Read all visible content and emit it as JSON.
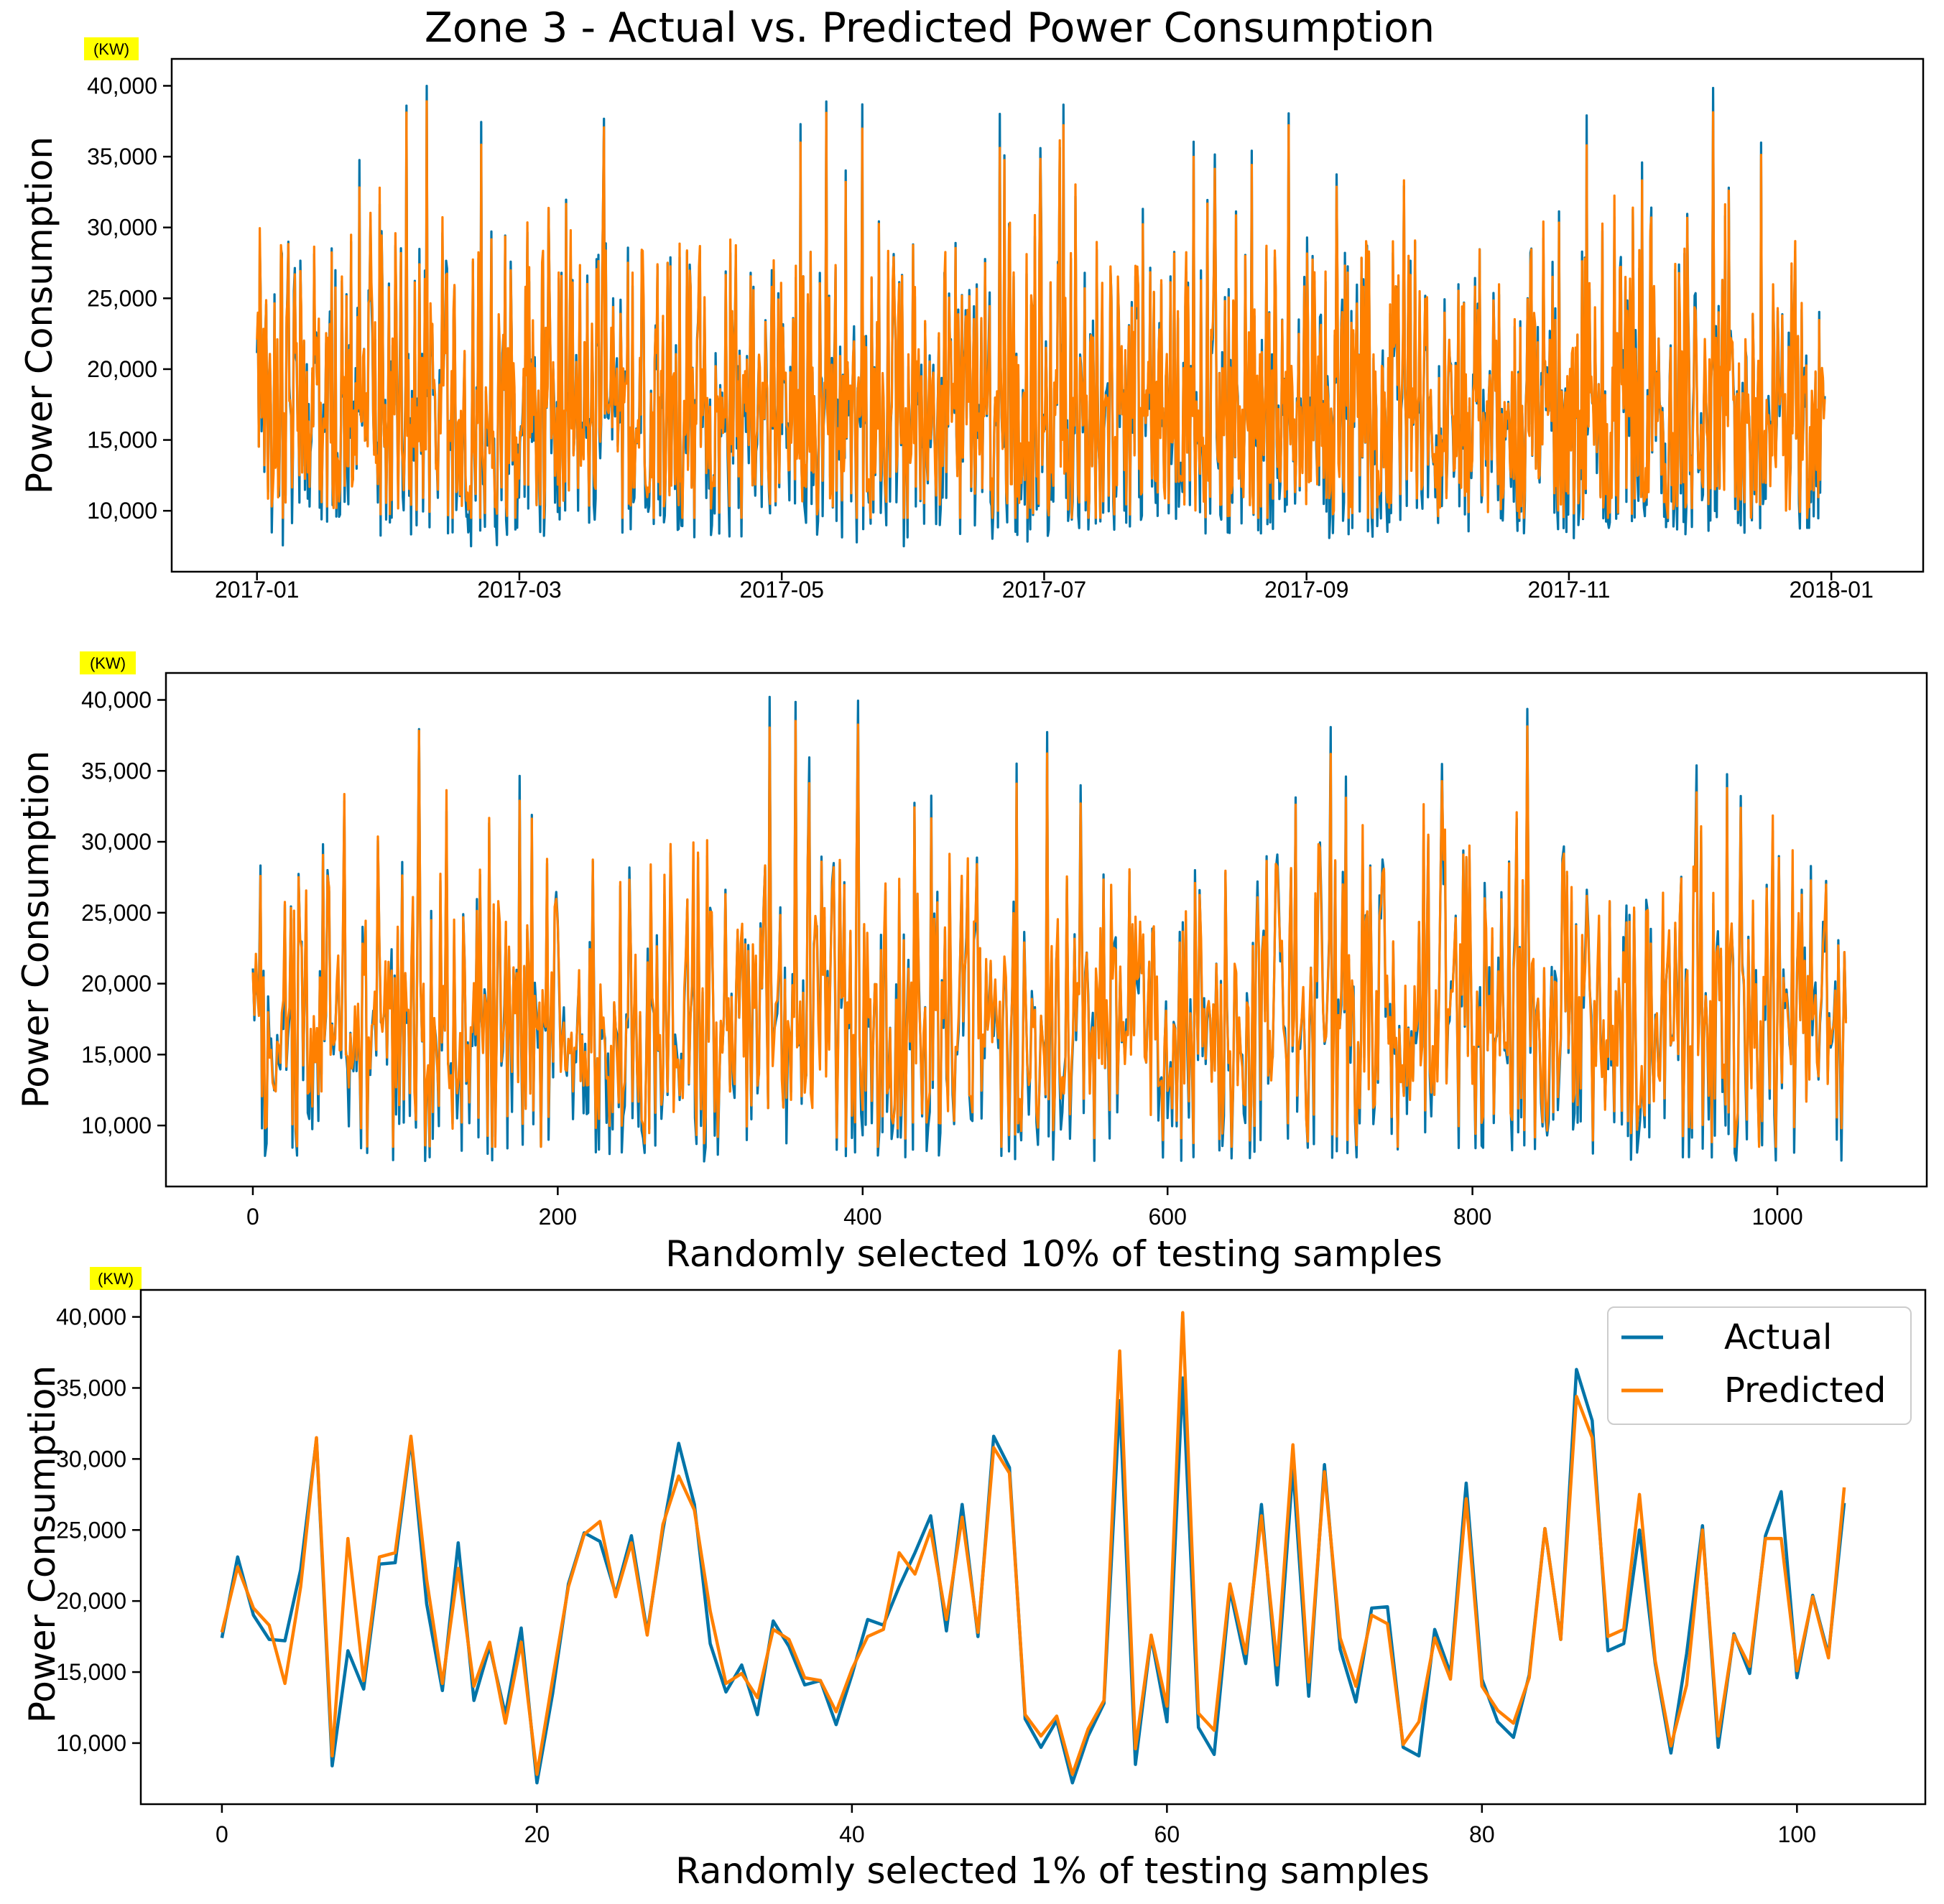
{
  "figure": {
    "title": "Zone 3 - Actual vs. Predicted Power Consumption",
    "colors": {
      "actual": "#0274a8",
      "predicted": "#ff8000",
      "unit_highlight": "#ffff00"
    }
  },
  "chart_data": [
    {
      "type": "line",
      "subplot": "top",
      "title": "Zone 3 - Actual vs. Predicted Power Consumption",
      "ylabel": "Power Consumption",
      "unit_label": "(KW)",
      "xlabel": "",
      "x_tick_labels": [
        "2017-01",
        "2017-03",
        "2017-05",
        "2017-07",
        "2017-09",
        "2017-11",
        "2018-01"
      ],
      "x_tick_months": [
        0,
        2,
        4,
        6,
        8,
        10,
        12
      ],
      "xlim_months": [
        -0.65,
        12.7
      ],
      "data_range_months": [
        0,
        11.95
      ],
      "y_ticks": [
        10000,
        15000,
        20000,
        25000,
        30000,
        35000,
        40000
      ],
      "y_tick_labels": [
        "10,000",
        "15,000",
        "20,000",
        "25,000",
        "30,000",
        "35,000",
        "40,000"
      ],
      "ylim": [
        5700,
        41900
      ],
      "series": [
        {
          "name": "Actual",
          "typical_min": 8000,
          "typical_max": 40000,
          "typical_center": 16500
        },
        {
          "name": "Predicted",
          "typical_min": 9500,
          "typical_max": 40300,
          "typical_center": 16500
        }
      ]
    },
    {
      "type": "line",
      "subplot": "middle",
      "ylabel": "Power Consumption",
      "unit_label": "(KW)",
      "xlabel": "Randomly selected 10% of testing samples",
      "x_ticks": [
        0,
        200,
        400,
        600,
        800,
        1000
      ],
      "x_tick_labels": [
        "0",
        "200",
        "400",
        "600",
        "800",
        "1000"
      ],
      "xlim": [
        -57,
        1098
      ],
      "n_samples": 1046,
      "y_ticks": [
        10000,
        15000,
        20000,
        25000,
        30000,
        35000,
        40000
      ],
      "y_tick_labels": [
        "10,000",
        "15,000",
        "20,000",
        "25,000",
        "30,000",
        "35,000",
        "40,000"
      ],
      "ylim": [
        5700,
        41900
      ],
      "series": [
        {
          "name": "Actual",
          "typical_min": 7500,
          "typical_max": 40300,
          "typical_center": 16500
        },
        {
          "name": "Predicted",
          "typical_min": 8500,
          "typical_max": 38800,
          "typical_center": 16500
        }
      ]
    },
    {
      "type": "line",
      "subplot": "bottom",
      "ylabel": "Power Consumption",
      "unit_label": "(KW)",
      "xlabel": "Randomly selected 1% of testing samples",
      "x_ticks": [
        0,
        20,
        40,
        60,
        80,
        100
      ],
      "x_tick_labels": [
        "0",
        "20",
        "40",
        "60",
        "80",
        "100"
      ],
      "xlim": [
        -5.15,
        108.15
      ],
      "y_ticks": [
        10000,
        15000,
        20000,
        25000,
        30000,
        35000,
        40000
      ],
      "y_tick_labels": [
        "10,000",
        "15,000",
        "20,000",
        "25,000",
        "30,000",
        "35,000",
        "40,000"
      ],
      "ylim": [
        5700,
        41900
      ],
      "legend": {
        "position": "top-right",
        "entries": [
          "Actual",
          "Predicted"
        ]
      },
      "series": [
        {
          "name": "Actual",
          "values": [
            17400,
            23100,
            19000,
            17300,
            17200,
            22200,
            31400,
            8400,
            16500,
            13800,
            22600,
            22700,
            31400,
            19800,
            13700,
            24100,
            13000,
            16800,
            12000,
            18100,
            7200,
            13500,
            21200,
            24800,
            24200,
            20500,
            24600,
            17800,
            25000,
            31100,
            26800,
            17000,
            13600,
            15500,
            12000,
            18600,
            16800,
            14100,
            14400,
            11300,
            14800,
            18700,
            18300,
            21000,
            23400,
            26000,
            17900,
            26800,
            17500,
            31600,
            29400,
            11700,
            9700,
            11600,
            7200,
            10500,
            12800,
            34100,
            8500,
            17500,
            11500,
            35700,
            11100,
            9200,
            20800,
            15600,
            26800,
            14100,
            29400,
            13300,
            29600,
            16600,
            12900,
            19500,
            19600,
            9700,
            9100,
            18000,
            14900,
            28300,
            14500,
            11500,
            10400,
            14800,
            25100,
            17300,
            36300,
            32700,
            16500,
            17000,
            25000,
            15600,
            9300,
            16300,
            25300,
            9700,
            17700,
            14900,
            24600,
            27700,
            14600,
            20400,
            16200,
            26900
          ]
        },
        {
          "name": "Predicted",
          "values": [
            17800,
            22400,
            19500,
            18300,
            14200,
            21000,
            31500,
            9100,
            24400,
            14400,
            23100,
            23400,
            31600,
            21500,
            14200,
            22300,
            14000,
            17100,
            11400,
            17100,
            7800,
            14500,
            21000,
            24700,
            25600,
            20300,
            24100,
            17600,
            25400,
            28800,
            26400,
            19300,
            14200,
            14900,
            13200,
            18000,
            17300,
            14600,
            14400,
            12200,
            15200,
            17500,
            18000,
            23400,
            21900,
            25000,
            18700,
            25900,
            17800,
            30800,
            29000,
            12000,
            10500,
            11900,
            7800,
            11000,
            13000,
            37600,
            9600,
            17600,
            12600,
            40300,
            12100,
            10900,
            21200,
            16300,
            26000,
            15500,
            31000,
            14300,
            29100,
            17400,
            14000,
            19000,
            18400,
            9900,
            11500,
            17400,
            14500,
            27200,
            14000,
            12300,
            11400,
            14600,
            25100,
            17300,
            34400,
            31500,
            17500,
            18000,
            27500,
            15800,
            9800,
            14100,
            25000,
            10500,
            17600,
            15400,
            24400,
            24400,
            15100,
            20300,
            16000,
            28000
          ]
        }
      ]
    }
  ]
}
